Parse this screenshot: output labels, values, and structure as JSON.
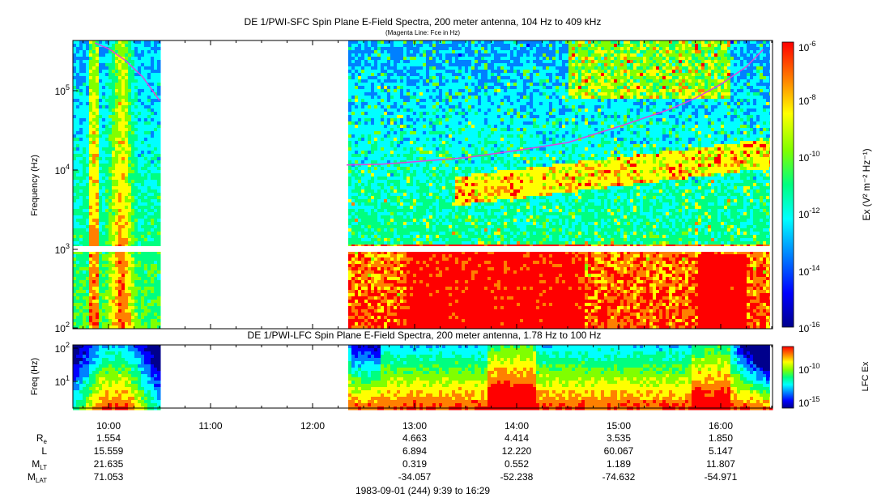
{
  "top_panel": {
    "title": "DE 1/PWI-SFC  Spin Plane E-Field Spectra, 200 meter antenna, 104 Hz to 409 kHz",
    "subtitle": "(Magenta Line: Fce in Hz)",
    "ylabel": "Frequency (Hz)",
    "y_ticks": [
      {
        "base": "10",
        "exp": "2"
      },
      {
        "base": "10",
        "exp": "3"
      },
      {
        "base": "10",
        "exp": "4"
      },
      {
        "base": "10",
        "exp": "5"
      }
    ],
    "colorbar": {
      "label": "Ex (V² m⁻² Hz⁻¹)",
      "ticks": [
        {
          "base": "10",
          "exp": "-6"
        },
        {
          "base": "10",
          "exp": "-8"
        },
        {
          "base": "10",
          "exp": "-10"
        },
        {
          "base": "10",
          "exp": "-12"
        },
        {
          "base": "10",
          "exp": "-14"
        },
        {
          "base": "10",
          "exp": "-16"
        }
      ]
    }
  },
  "bottom_panel": {
    "title": "DE 1/PWI-LFC  Spin Plane E-Field Spectra, 200 meter antenna, 1.78 Hz to 100 Hz",
    "ylabel": "Freq (Hz)",
    "y_ticks": [
      {
        "base": "10",
        "exp": "1"
      },
      {
        "base": "10",
        "exp": "2"
      }
    ],
    "colorbar": {
      "label": "LFC Ex",
      "ticks": [
        {
          "base": "10",
          "exp": "-10"
        },
        {
          "base": "10",
          "exp": "-15"
        }
      ]
    }
  },
  "x_axis": {
    "ticks": [
      "10:00",
      "11:00",
      "12:00",
      "13:00",
      "14:00",
      "15:00",
      "16:00"
    ],
    "footer": "1983-09-01 (244) 9:39 to 16:29"
  },
  "ephemeris": {
    "rows": [
      {
        "label": "R",
        "sub": "e",
        "values": [
          "1.554",
          "",
          "",
          "4.663",
          "4.414",
          "3.535",
          "1.850"
        ]
      },
      {
        "label": "L",
        "sub": "",
        "values": [
          "15.559",
          "",
          "",
          "6.894",
          "12.220",
          "60.067",
          "5.147"
        ]
      },
      {
        "label": "M",
        "sub": "LT",
        "values": [
          "21.635",
          "",
          "",
          "0.319",
          "0.552",
          "1.189",
          "11.807"
        ]
      },
      {
        "label": "M",
        "sub": "LAT",
        "values": [
          "71.053",
          "",
          "",
          "-34.057",
          "-52.238",
          "-74.632",
          "-54.971"
        ]
      }
    ]
  },
  "colors": {
    "colormap": [
      "#00008c",
      "#0000ff",
      "#0080ff",
      "#00ffff",
      "#00ff80",
      "#80ff00",
      "#ffff00",
      "#ff8000",
      "#ff0000"
    ],
    "fce_line": "#e040e0",
    "gap_band": "#ffffff"
  },
  "chart_data": [
    {
      "type": "heatmap",
      "title": "DE 1/PWI-SFC  Spin Plane E-Field Spectra, 200 meter antenna, 104 Hz to 409 kHz",
      "ylabel": "Frequency (Hz)",
      "xlabel": "",
      "y_scale": "log",
      "x_range": [
        "09:39",
        "16:29"
      ],
      "ylim": [
        100,
        409000
      ],
      "data_gaps": [
        [
          "10:32",
          "12:20"
        ]
      ],
      "colorbar_range": [
        1e-16,
        1e-06
      ],
      "series": [
        {
          "name": "Fce",
          "x": [
            "09:52",
            "10:00",
            "10:10",
            "10:20",
            "10:30",
            "12:20",
            "12:40",
            "13:00",
            "13:30",
            "14:00",
            "14:30",
            "15:00",
            "15:30",
            "15:45",
            "16:00",
            "16:15",
            "16:25"
          ],
          "y": [
            400000,
            340000,
            240000,
            150000,
            75000,
            11500,
            11700,
            12600,
            14200,
            17500,
            22000,
            35000,
            58000,
            80000,
            120000,
            200000,
            330000
          ]
        }
      ]
    },
    {
      "type": "heatmap",
      "title": "DE 1/PWI-LFC  Spin Plane E-Field Spectra, 200 meter antenna, 1.78 Hz to 100 Hz",
      "ylabel": "Freq (Hz)",
      "y_scale": "log",
      "x_range": [
        "09:39",
        "16:29"
      ],
      "ylim": [
        1.78,
        100
      ],
      "data_gaps": [
        [
          "10:32",
          "12:20"
        ]
      ],
      "colorbar_range": [
        1e-17,
        1e-08
      ]
    }
  ]
}
